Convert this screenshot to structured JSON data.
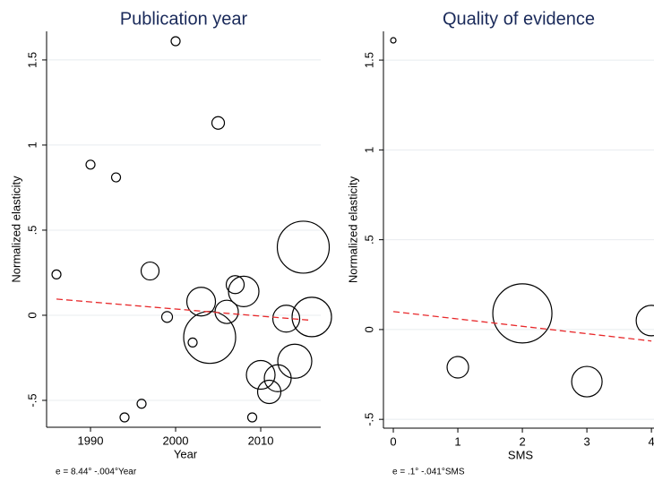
{
  "chart_data": [
    {
      "type": "scatter",
      "title": "Publication year",
      "xlabel": "Year",
      "ylabel": "Normalized elasticity",
      "note": "e = 8.44° -.004°Year",
      "x": [
        1986,
        1990,
        1993,
        1994,
        1996,
        1997,
        1999,
        2000,
        2002,
        2003,
        2004,
        2005,
        2006,
        2007,
        2008,
        2009,
        2010,
        2011,
        2012,
        2013,
        2014,
        2015,
        2016
      ],
      "values": [
        0.24,
        0.885,
        0.81,
        -0.6,
        -0.52,
        0.26,
        -0.01,
        1.61,
        -0.16,
        0.08,
        -0.13,
        1.13,
        0.02,
        0.18,
        0.14,
        -0.6,
        -0.35,
        -0.45,
        -0.37,
        -0.02,
        -0.27,
        0.4,
        -0.01
      ],
      "sizes": [
        25,
        25,
        25,
        25,
        25,
        100,
        36,
        25,
        25,
        256,
        841,
        49,
        169,
        100,
        289,
        25,
        256,
        169,
        225,
        225,
        361,
        841,
        484
      ],
      "color": "#000000",
      "fit": {
        "color": "#e8292b",
        "x": [
          1986,
          2016
        ],
        "values": [
          0.095,
          -0.03
        ]
      },
      "xlim": [
        1984.84,
        2017.05
      ],
      "ylim": [
        -0.658,
        1.668
      ],
      "xticks": [
        1990,
        2000,
        2010
      ],
      "yticks": [
        {
          "value": -0.5,
          "label": "-.5"
        },
        0,
        {
          "value": 0.5,
          "label": ".5"
        },
        1,
        1.5
      ],
      "grid": true
    },
    {
      "type": "scatter",
      "title": "Quality of evidence",
      "xlabel": "SMS",
      "ylabel": "Normalized elasticity",
      "note": "e = .1° -.041°SMS",
      "x": [
        0,
        1,
        2,
        3,
        4
      ],
      "values": [
        1.61,
        -0.21,
        0.09,
        -0.29,
        0.05
      ],
      "sizes": [
        9,
        144,
        1089,
        289,
        289
      ],
      "color": "#000000",
      "fit": {
        "color": "#e8292b",
        "x": [
          0,
          4
        ],
        "values": [
          0.1,
          -0.064
        ]
      },
      "xlim": [
        -0.153,
        4.04
      ],
      "ylim": [
        -0.549,
        1.66
      ],
      "xticks": [
        0,
        1,
        2,
        3,
        4
      ],
      "yticks": [
        {
          "value": -0.5,
          "label": "-.5"
        },
        0,
        {
          "value": 0.5,
          "label": ".5"
        },
        1,
        1.5
      ],
      "grid": true
    }
  ]
}
